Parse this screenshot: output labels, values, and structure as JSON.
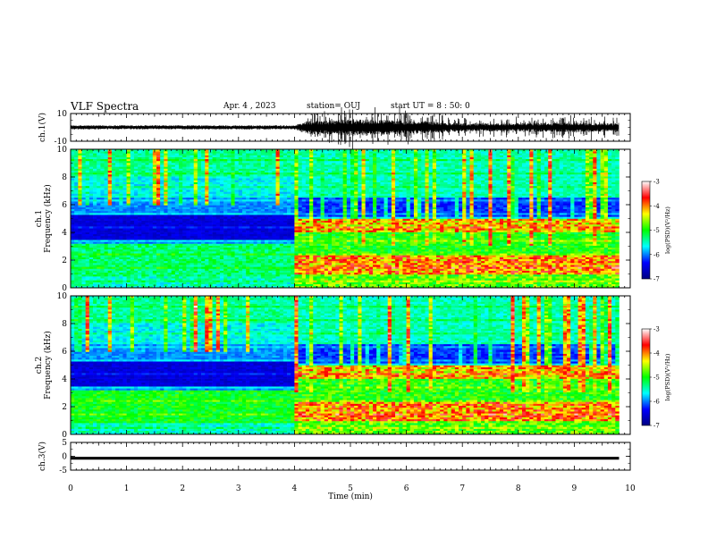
{
  "header": {
    "title": "VLF Spectra",
    "date": "Apr. 4 , 2023",
    "station": "station= OUJ",
    "start": "start  UT =  8 : 50: 0"
  },
  "chart_data": [
    {
      "type": "line",
      "id": "ch1_waveform",
      "ylabel": "ch.1(V)",
      "ylim": [
        -10,
        10
      ],
      "yticks": [
        "10",
        "-10"
      ],
      "xlim": [
        0,
        10
      ],
      "color": "#000000",
      "envelope_note_x": [
        0,
        4.0,
        4.2,
        5.0,
        6.0,
        7.0,
        8.0,
        9.0,
        9.8
      ],
      "envelope_amplitude": [
        1.5,
        1.5,
        4.5,
        6.0,
        5.0,
        3.0,
        3.0,
        3.5,
        3.0
      ]
    },
    {
      "type": "heatmap",
      "id": "ch1_spectrogram",
      "ylabel": "ch.1",
      "ylabel2": "Frequency (kHz)",
      "ylim": [
        0,
        10
      ],
      "yticks": [
        "10",
        "8",
        "6",
        "4",
        "2",
        "0"
      ],
      "xlim": [
        0,
        10
      ],
      "data_end_min": 9.8,
      "event_time_min": 4.0,
      "colorbar": {
        "label": "log(PSD)(V²/Hz)",
        "range": [
          -7,
          -3
        ],
        "ticks": [
          "-3",
          "-4",
          "-5",
          "-6",
          "-7"
        ],
        "colormap": [
          "#000080",
          "#0000ff",
          "#00ffff",
          "#00ff00",
          "#ffff00",
          "#ff0000",
          "#ffffff"
        ]
      }
    },
    {
      "type": "heatmap",
      "id": "ch2_spectrogram",
      "ylabel": "ch.2",
      "ylabel2": "Frequency (kHz)",
      "ylim": [
        0,
        10
      ],
      "yticks": [
        "10",
        "8",
        "6",
        "4",
        "2",
        "0"
      ],
      "xlim": [
        0,
        10
      ],
      "data_end_min": 9.8,
      "event_time_min": 4.0,
      "colorbar": {
        "label": "log(PSD)(V²/Hz)",
        "range": [
          -7,
          -3
        ],
        "ticks": [
          "-3",
          "-4",
          "-5",
          "-6",
          "-7"
        ],
        "colormap": [
          "#000080",
          "#0000ff",
          "#00ffff",
          "#00ff00",
          "#ffff00",
          "#ff0000",
          "#ffffff"
        ]
      }
    },
    {
      "type": "line",
      "id": "ch3_waveform",
      "ylabel": "ch.3(V)",
      "ylim": [
        -5,
        5
      ],
      "yticks": [
        "5",
        "0",
        "-5"
      ],
      "xlim": [
        0,
        10
      ],
      "xlabel": "Time  (min)",
      "xticks": [
        "0",
        "1",
        "2",
        "3",
        "4",
        "5",
        "6",
        "7",
        "8",
        "9",
        "10"
      ],
      "value": -0.7,
      "color": "#000000"
    }
  ]
}
